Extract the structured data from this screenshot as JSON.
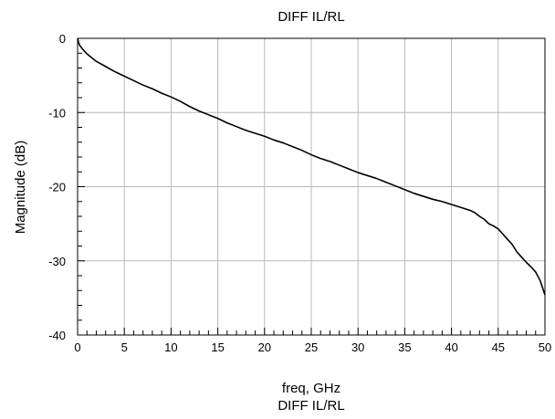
{
  "chart_data": {
    "type": "line",
    "title": "DIFF IL/RL",
    "subtitle": "DIFF IL/RL",
    "xlabel": "freq, GHz",
    "ylabel": "Magnitude (dB)",
    "xlim": [
      0,
      50
    ],
    "ylim": [
      -40,
      0
    ],
    "x_ticks": [
      0,
      5,
      10,
      15,
      20,
      25,
      30,
      35,
      40,
      45,
      50
    ],
    "y_ticks": [
      0,
      -10,
      -20,
      -30,
      -40
    ],
    "x_minor_step": 1,
    "y_minor_step": 2,
    "grid": true,
    "legend": "none",
    "line_color": "#000000",
    "series": [
      {
        "x": [
          0,
          0.1,
          0.2,
          0.5,
          1,
          1.5,
          2,
          3,
          4,
          5,
          6,
          7,
          8,
          9,
          10,
          11,
          12,
          13,
          14,
          15,
          16,
          17,
          18,
          19,
          20,
          21,
          22,
          23,
          24,
          25,
          26,
          27,
          28,
          29,
          30,
          31,
          32,
          33,
          34,
          35,
          36,
          37,
          38,
          39,
          40,
          41,
          42,
          42.5,
          43,
          43.5,
          44,
          44.5,
          45,
          45.5,
          46,
          46.5,
          47,
          47.5,
          48,
          48.5,
          49,
          49.5,
          50
        ],
        "y": [
          0,
          -0.5,
          -0.9,
          -1.4,
          -2.1,
          -2.6,
          -3.1,
          -3.8,
          -4.5,
          -5.1,
          -5.7,
          -6.3,
          -6.8,
          -7.4,
          -7.9,
          -8.5,
          -9.2,
          -9.8,
          -10.3,
          -10.8,
          -11.4,
          -11.9,
          -12.4,
          -12.8,
          -13.2,
          -13.7,
          -14.1,
          -14.6,
          -15.1,
          -15.7,
          -16.2,
          -16.6,
          -17.1,
          -17.6,
          -18.1,
          -18.5,
          -18.9,
          -19.4,
          -19.9,
          -20.4,
          -20.9,
          -21.3,
          -21.7,
          -22.0,
          -22.4,
          -22.8,
          -23.2,
          -23.5,
          -24.0,
          -24.4,
          -25.0,
          -25.3,
          -25.7,
          -26.4,
          -27.1,
          -27.8,
          -28.8,
          -29.5,
          -30.2,
          -30.8,
          -31.5,
          -32.7,
          -34.6
        ]
      }
    ]
  }
}
